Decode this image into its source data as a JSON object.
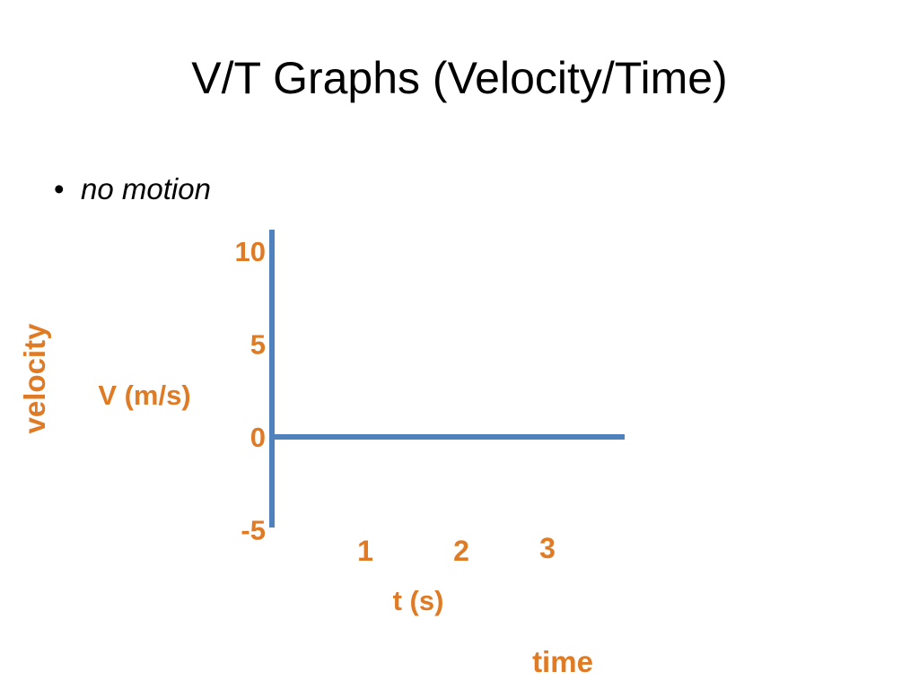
{
  "slide": {
    "title": "V/T Graphs (Velocity/Time)",
    "bullet_symbol": "•",
    "bullet_text": "no motion"
  },
  "colors": {
    "axis": "#4F81BD",
    "data_line": "#4F81BD",
    "label": "#E07B25",
    "text": "#000000"
  },
  "chart_data": {
    "type": "line",
    "title": "",
    "xlabel": "t (s)",
    "ylabel": "V (m/s)",
    "x_caption": "time",
    "y_caption": "velocity",
    "x_ticks": [
      1,
      2,
      3
    ],
    "y_ticks": [
      10,
      5,
      0,
      -5
    ],
    "xlim": [
      0,
      3.6
    ],
    "ylim": [
      -5,
      10
    ],
    "grid": false,
    "series": [
      {
        "x": [
          0,
          3.6
        ],
        "y": [
          0,
          0
        ]
      }
    ]
  }
}
